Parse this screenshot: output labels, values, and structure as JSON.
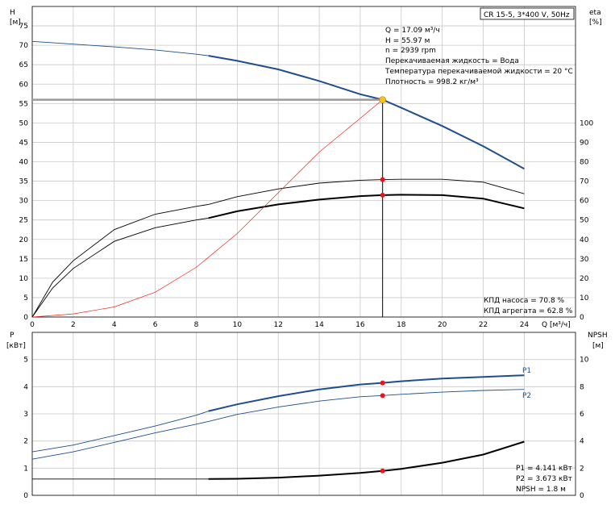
{
  "title_box": "CR 15-5, 3*400 V, 50Hz",
  "chart_data": [
    {
      "type": "line",
      "name_hint": "head-efficiency",
      "xlabel": "Q [м³/ч]",
      "ylabel_left_top": "H",
      "ylabel_left_unit": "[м]",
      "ylabel_right_top": "eta",
      "ylabel_right_unit": "[%]",
      "xlim": [
        0,
        26.5
      ],
      "ylim_left": [
        0,
        80
      ],
      "ylim_right": [
        0,
        160
      ],
      "x_ticks": [
        0,
        2,
        4,
        6,
        8,
        10,
        12,
        14,
        16,
        18,
        20,
        22,
        24
      ],
      "y_left_ticks": [
        0,
        5,
        10,
        15,
        20,
        25,
        30,
        35,
        40,
        45,
        50,
        55,
        60,
        65,
        70,
        75
      ],
      "y_right_ticks": [
        0,
        10,
        20,
        30,
        40,
        50,
        60,
        70,
        80,
        90,
        100
      ],
      "grid": true,
      "series": [
        {
          "key": "H",
          "axis": "left",
          "color": "#1f4e8c",
          "x": [
            0,
            2,
            4,
            6,
            8,
            8.6,
            10,
            12,
            14,
            16,
            17.09,
            18,
            20,
            22,
            24
          ],
          "y": [
            71,
            70.3,
            69.6,
            68.8,
            67.7,
            67.3,
            66,
            63.8,
            60.8,
            57.4,
            55.97,
            53.9,
            49.2,
            44,
            38.2
          ],
          "emph_from": 8.6
        },
        {
          "key": "eta_pump",
          "axis": "right",
          "color": "#000000",
          "x": [
            0,
            1,
            2,
            4,
            6,
            8,
            8.6,
            10,
            12,
            14,
            16,
            17.09,
            18,
            20,
            22,
            24
          ],
          "y": [
            0,
            18,
            29,
            45,
            53,
            57,
            58,
            62,
            66,
            69,
            70.5,
            70.8,
            71,
            71,
            69.5,
            63.5
          ]
        },
        {
          "key": "eta_aggr",
          "axis": "right",
          "color": "#000000",
          "x": [
            0,
            1,
            2,
            4,
            6,
            8,
            8.6,
            10,
            12,
            14,
            16,
            17.09,
            18,
            20,
            22,
            24
          ],
          "y": [
            0,
            15,
            25,
            39,
            46,
            50,
            51,
            54.5,
            58,
            60.5,
            62.3,
            62.8,
            63,
            62.8,
            61,
            56
          ],
          "emph_from": 8.6
        },
        {
          "key": "system",
          "axis": "left",
          "color": "#e8291c",
          "x": [
            0,
            2,
            4,
            6,
            8,
            10,
            12,
            14,
            16,
            17.09
          ],
          "y": [
            0,
            0.8,
            2.6,
            6.4,
            12.8,
            21.5,
            32,
            42.5,
            51.2,
            55.97
          ]
        }
      ],
      "duty_point": {
        "x": 17.09,
        "y": 55.97
      },
      "red_points": [
        {
          "x": 17.09,
          "eta": 70.8
        },
        {
          "x": 17.09,
          "eta": 62.8
        }
      ],
      "info_lines": [
        "Q = 17.09 м³/ч",
        "H = 55.97 м",
        "n = 2939 rpm",
        "Перекачиваемая жидкость = Вода",
        "Температура перекачиваемой жидкости = 20 °C",
        "Плотность = 998.2 кг/м³"
      ],
      "efficiency_notes": [
        "КПД насоса = 70.8 %",
        "КПД агрегата = 62.8 %"
      ]
    },
    {
      "type": "line",
      "name_hint": "power-npsh",
      "ylabel_left_top": "P",
      "ylabel_left_unit": "[кВт]",
      "ylabel_right_top": "NPSH",
      "ylabel_right_unit": "[м]",
      "xlim": [
        0,
        26.5
      ],
      "ylim_left": [
        0,
        6
      ],
      "ylim_right": [
        0,
        12
      ],
      "y_left_ticks": [
        0,
        1,
        2,
        3,
        4,
        5
      ],
      "y_right_ticks": [
        0,
        2,
        4,
        6,
        8,
        10
      ],
      "grid": true,
      "series": [
        {
          "key": "P1",
          "axis": "left",
          "label": "P1",
          "color": "#1f4e8c",
          "x": [
            0,
            2,
            4,
            6,
            8,
            8.6,
            10,
            12,
            14,
            16,
            17.09,
            18,
            20,
            22,
            24
          ],
          "y": [
            1.6,
            1.85,
            2.2,
            2.55,
            2.95,
            3.1,
            3.35,
            3.65,
            3.9,
            4.08,
            4.141,
            4.2,
            4.3,
            4.36,
            4.42
          ],
          "emph_from": 8.6
        },
        {
          "key": "P2",
          "axis": "left",
          "label": "P2",
          "color": "#1f4e8c",
          "x": [
            0,
            2,
            4,
            6,
            8,
            8.6,
            10,
            12,
            14,
            16,
            17.09,
            18,
            20,
            22,
            24
          ],
          "y": [
            1.33,
            1.6,
            1.95,
            2.3,
            2.62,
            2.72,
            2.98,
            3.25,
            3.47,
            3.63,
            3.673,
            3.72,
            3.8,
            3.86,
            3.9
          ]
        },
        {
          "key": "NPSH",
          "axis": "right",
          "color": "#000000",
          "x": [
            0,
            4,
            8,
            8.6,
            10,
            12,
            14,
            16,
            17.09,
            18,
            20,
            22,
            24
          ],
          "y": [
            1.2,
            1.2,
            1.2,
            1.2,
            1.22,
            1.3,
            1.45,
            1.65,
            1.8,
            1.95,
            2.4,
            3.0,
            3.95
          ],
          "emph_from": 8.6
        }
      ],
      "red_points": [
        {
          "x": 17.09,
          "p": 4.141
        },
        {
          "x": 17.09,
          "p": 3.673
        },
        {
          "x": 17.09,
          "npsh": 1.8
        }
      ],
      "value_notes": [
        "P1 = 4.141 кВт",
        "P2 = 3.673 кВт",
        "NPSH = 1.8 м"
      ]
    }
  ]
}
